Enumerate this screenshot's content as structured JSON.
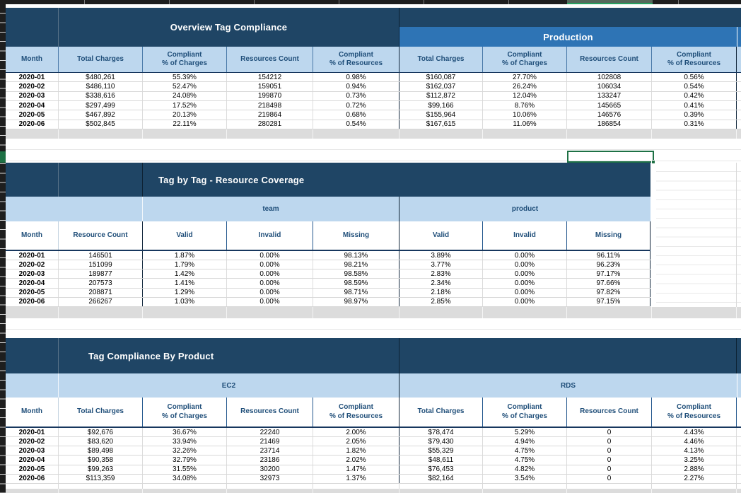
{
  "colors": {
    "navy": "#1F4565",
    "prodblue": "#2E74B5",
    "lightblue": "#BDD7EE",
    "headertext": "#1F4E79",
    "green": "#1E7145"
  },
  "overview_table": {
    "title": "Overview Tag Compliance",
    "right_section_title": "Production",
    "headers": [
      "Month",
      "Total Charges",
      "Compliant\n% of Charges",
      "Resources Count",
      "Compliant\n% of Resources",
      "Total Charges",
      "Compliant\n% of Charges",
      "Resources Count",
      "Compliant\n% of Resources"
    ],
    "rows": [
      [
        "2020-01",
        "$480,261",
        "55.39%",
        "154212",
        "0.98%",
        "$160,087",
        "27.70%",
        "102808",
        "0.56%"
      ],
      [
        "2020-02",
        "$486,110",
        "52.47%",
        "159051",
        "0.94%",
        "$162,037",
        "26.24%",
        "106034",
        "0.54%"
      ],
      [
        "2020-03",
        "$338,616",
        "24.08%",
        "199870",
        "0.73%",
        "$112,872",
        "12.04%",
        "133247",
        "0.42%"
      ],
      [
        "2020-04",
        "$297,499",
        "17.52%",
        "218498",
        "0.72%",
        "$99,166",
        "8.76%",
        "145665",
        "0.41%"
      ],
      [
        "2020-05",
        "$467,892",
        "20.13%",
        "219864",
        "0.68%",
        "$155,964",
        "10.06%",
        "146576",
        "0.39%"
      ],
      [
        "2020-06",
        "$502,845",
        "22.11%",
        "280281",
        "0.54%",
        "$167,615",
        "11.06%",
        "186854",
        "0.31%"
      ]
    ]
  },
  "coverage_table": {
    "title": "Tag by Tag - Resource Coverage",
    "tag_groups": [
      "team",
      "product"
    ],
    "headers": [
      "Month",
      "Resource Count",
      "Valid",
      "Invalid",
      "Missing",
      "Valid",
      "Invalid",
      "Missing"
    ],
    "rows": [
      [
        "2020-01",
        "146501",
        "1.87%",
        "0.00%",
        "98.13%",
        "3.89%",
        "0.00%",
        "96.11%"
      ],
      [
        "2020-02",
        "151099",
        "1.79%",
        "0.00%",
        "98.21%",
        "3.77%",
        "0.00%",
        "96.23%"
      ],
      [
        "2020-03",
        "189877",
        "1.42%",
        "0.00%",
        "98.58%",
        "2.83%",
        "0.00%",
        "97.17%"
      ],
      [
        "2020-04",
        "207573",
        "1.41%",
        "0.00%",
        "98.59%",
        "2.34%",
        "0.00%",
        "97.66%"
      ],
      [
        "2020-05",
        "208871",
        "1.29%",
        "0.00%",
        "98.71%",
        "2.18%",
        "0.00%",
        "97.82%"
      ],
      [
        "2020-06",
        "266267",
        "1.03%",
        "0.00%",
        "98.97%",
        "2.85%",
        "0.00%",
        "97.15%"
      ]
    ]
  },
  "product_table": {
    "title": "Tag Compliance By Product",
    "product_groups": [
      "EC2",
      "RDS"
    ],
    "headers": [
      "Month",
      "Total Charges",
      "Compliant\n% of Charges",
      "Resources Count",
      "Compliant\n% of Resources",
      "Total Charges",
      "Compliant\n% of Charges",
      "Resources Count",
      "Compliant\n% of Resources"
    ],
    "rows": [
      [
        "2020-01",
        "$92,676",
        "36.67%",
        "22240",
        "2.00%",
        "$78,474",
        "5.29%",
        "0",
        "4.43%"
      ],
      [
        "2020-02",
        "$83,620",
        "33.94%",
        "21469",
        "2.05%",
        "$79,430",
        "4.94%",
        "0",
        "4.46%"
      ],
      [
        "2020-03",
        "$89,498",
        "32.26%",
        "23714",
        "1.82%",
        "$55,329",
        "4.75%",
        "0",
        "4.13%"
      ],
      [
        "2020-04",
        "$90,358",
        "32.79%",
        "23186",
        "2.02%",
        "$48,611",
        "4.75%",
        "0",
        "3.25%"
      ],
      [
        "2020-05",
        "$99,263",
        "31.55%",
        "30200",
        "1.47%",
        "$76,453",
        "4.82%",
        "0",
        "2.88%"
      ],
      [
        "2020-06",
        "$113,359",
        "34.08%",
        "32973",
        "1.37%",
        "$82,164",
        "3.54%",
        "0",
        "2.27%"
      ]
    ]
  }
}
